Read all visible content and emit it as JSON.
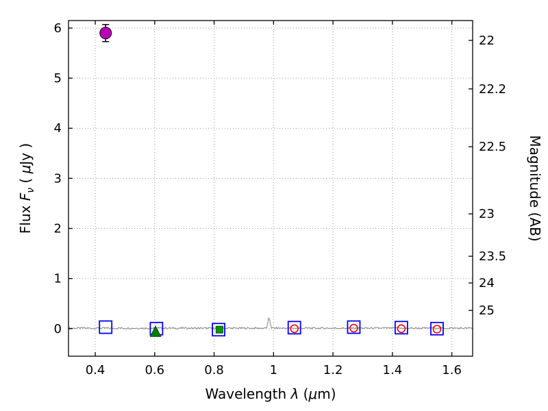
{
  "chart_data": {
    "type": "scatter",
    "title": "",
    "xlabel": "Wavelength λ (μm)",
    "xlabel_segments": [
      {
        "t": "Wavelength  "
      },
      {
        "t": "λ",
        "i": true
      },
      {
        "t": " ("
      },
      {
        "t": "μ",
        "i": true
      },
      {
        "t": "m)"
      }
    ],
    "ylabel_left": "Flux Fν ( μJy )",
    "ylabel_left_segments": [
      {
        "t": "Flux  "
      },
      {
        "t": "F",
        "i": true
      },
      {
        "t": "ν",
        "i": true,
        "sub": true
      },
      {
        "t": "  ( "
      },
      {
        "t": "μ",
        "i": true
      },
      {
        "t": "Jy )"
      }
    ],
    "ylabel_right": "Magnitude (AB)",
    "xlim": [
      0.31,
      1.67
    ],
    "ylim": [
      -0.55,
      6.15
    ],
    "x_ticks": [
      {
        "v": 0.4,
        "label": "0.4"
      },
      {
        "v": 0.6,
        "label": "0.6"
      },
      {
        "v": 0.8,
        "label": "0.8"
      },
      {
        "v": 1.0,
        "label": "1"
      },
      {
        "v": 1.2,
        "label": "1.2"
      },
      {
        "v": 1.4,
        "label": "1.4"
      },
      {
        "v": 1.6,
        "label": "1.6"
      }
    ],
    "y_ticks_left": [
      {
        "v": 0,
        "label": "0"
      },
      {
        "v": 1,
        "label": "1"
      },
      {
        "v": 2,
        "label": "2"
      },
      {
        "v": 3,
        "label": "3"
      },
      {
        "v": 4,
        "label": "4"
      },
      {
        "v": 5,
        "label": "5"
      },
      {
        "v": 6,
        "label": "6"
      }
    ],
    "y_ticks_right": [
      {
        "label": "22",
        "flux": 5.754
      },
      {
        "label": "22.2",
        "flux": 4.786
      },
      {
        "label": "22.5",
        "flux": 3.631
      },
      {
        "label": "23",
        "flux": 2.291
      },
      {
        "label": "23.5",
        "flux": 1.445
      },
      {
        "label": "24",
        "flux": 0.912
      },
      {
        "label": "25",
        "flux": 0.363
      }
    ],
    "grid": {
      "show": true,
      "style": "dotted",
      "color": "#999999"
    },
    "background": "#ffffff",
    "axis_color": "#000000",
    "series": [
      {
        "name": "detected-flux-point",
        "marker": "circle-filled",
        "color": "#b800b8",
        "edge": "#14000f",
        "size": 8.5,
        "points": [
          {
            "x": 0.435,
            "y": 5.9,
            "yerr": 0.17
          }
        ]
      },
      {
        "name": "band-photometry-squares",
        "marker": "square-open",
        "color": "#0000ff",
        "size": 18,
        "points": [
          {
            "x": 0.435,
            "y": 0.03
          },
          {
            "x": 0.606,
            "y": 0.0
          },
          {
            "x": 0.815,
            "y": -0.02
          },
          {
            "x": 1.07,
            "y": 0.02
          },
          {
            "x": 1.27,
            "y": 0.03
          },
          {
            "x": 1.43,
            "y": 0.02
          },
          {
            "x": 1.55,
            "y": 0.0
          }
        ]
      },
      {
        "name": "upper-limit-triangle",
        "marker": "triangle-filled",
        "color": "#007f00",
        "edge": "#003f00",
        "size": 14,
        "points": [
          {
            "x": 0.603,
            "y": -0.07
          }
        ]
      },
      {
        "name": "model-photometry-square",
        "marker": "square-filled",
        "color": "#009900",
        "edge": "#004d00",
        "size": 10,
        "points": [
          {
            "x": 0.818,
            "y": -0.02
          }
        ]
      },
      {
        "name": "model-photometry-circles",
        "marker": "circle-open",
        "color": "#ff0000",
        "size": 5.5,
        "points": [
          {
            "x": 1.07,
            "y": 0.0
          },
          {
            "x": 1.27,
            "y": 0.01
          },
          {
            "x": 1.43,
            "y": 0.0
          },
          {
            "x": 1.55,
            "y": -0.01
          }
        ]
      }
    ],
    "spectrum": {
      "name": "observed-spectrum",
      "color": "#8c8c8c",
      "baseline": 0.01,
      "noise": 0.018,
      "spike_x": 0.985,
      "spike_flux": 0.2
    }
  }
}
